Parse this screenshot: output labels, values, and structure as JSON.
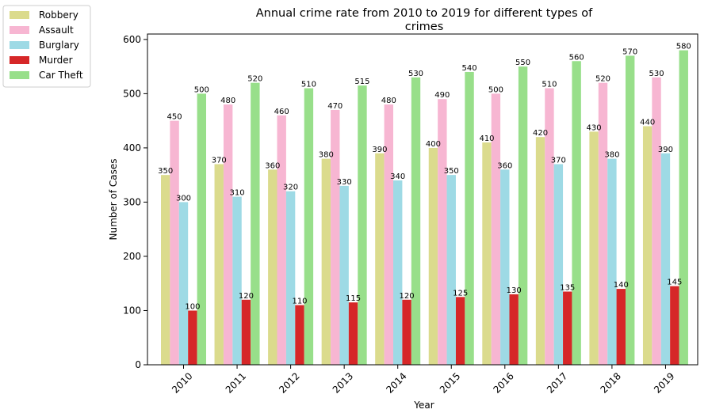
{
  "chart_data": {
    "type": "bar",
    "title_lines": [
      "Annual crime rate from 2010 to 2019 for different types of",
      "crimes"
    ],
    "xlabel": "Year",
    "ylabel": "Number of Cases",
    "categories": [
      "2010",
      "2011",
      "2012",
      "2013",
      "2014",
      "2015",
      "2016",
      "2017",
      "2018",
      "2019"
    ],
    "ylim": [
      0,
      610
    ],
    "yticks": [
      0,
      100,
      200,
      300,
      400,
      500,
      600
    ],
    "grid": false,
    "legend_position": "outside-top-left",
    "series": [
      {
        "name": "Robbery",
        "color": "#dbdb8d",
        "values": [
          350,
          370,
          360,
          380,
          390,
          400,
          410,
          420,
          430,
          440
        ]
      },
      {
        "name": "Assault",
        "color": "#f7b6d2",
        "values": [
          450,
          480,
          460,
          470,
          480,
          490,
          500,
          510,
          520,
          530
        ]
      },
      {
        "name": "Burglary",
        "color": "#9edae5",
        "values": [
          300,
          310,
          320,
          330,
          340,
          350,
          360,
          370,
          380,
          390
        ]
      },
      {
        "name": "Murder",
        "color": "#d62728",
        "values": [
          100,
          120,
          110,
          115,
          120,
          125,
          130,
          135,
          140,
          145
        ]
      },
      {
        "name": "Car Theft",
        "color": "#98df8a",
        "values": [
          500,
          520,
          510,
          515,
          530,
          540,
          550,
          560,
          570,
          580
        ]
      }
    ]
  }
}
